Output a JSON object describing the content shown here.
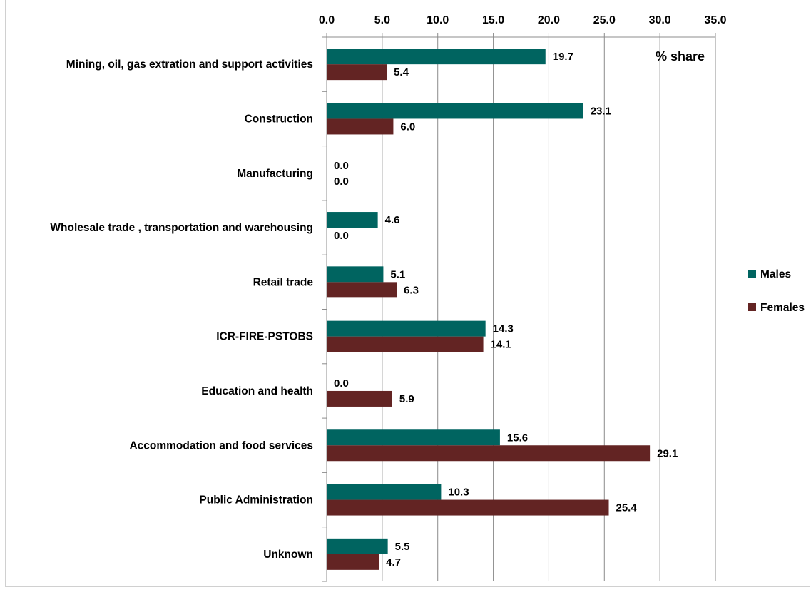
{
  "chart_data": {
    "type": "bar",
    "orientation": "horizontal",
    "unit_label": "% share",
    "categories": [
      "Mining, oil, gas extration and support activities",
      "Construction",
      "Manufacturing",
      "Wholesale trade , transportation and warehousing",
      "Retail trade",
      "ICR-FIRE-PSTOBS",
      "Education and health",
      "Accommodation and food services",
      "Public Administration",
      "Unknown"
    ],
    "series": [
      {
        "name": "Males",
        "color": "#006460",
        "values": [
          19.7,
          23.1,
          0.0,
          4.6,
          5.1,
          14.3,
          0.0,
          15.6,
          10.3,
          5.5
        ]
      },
      {
        "name": "Females",
        "color": "#632423",
        "values": [
          5.4,
          6.0,
          0.0,
          0.0,
          6.3,
          14.1,
          5.9,
          29.1,
          25.4,
          4.7
        ]
      }
    ],
    "xlim": [
      0,
      35
    ],
    "ticks": [
      "0.0",
      "5.0",
      "10.0",
      "15.0",
      "20.0",
      "25.0",
      "30.0",
      "35.0"
    ],
    "xaxis_position": "top",
    "grid": true,
    "legend_position": "right",
    "title": "",
    "xlabel": "",
    "ylabel": ""
  }
}
